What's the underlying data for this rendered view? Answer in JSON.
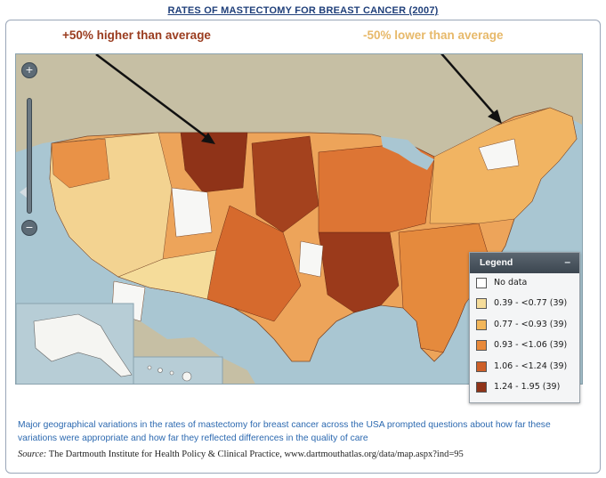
{
  "title": "RATES OF MASTECTOMY FOR BREAST CANCER (2007)",
  "annotations": {
    "high": "+50% higher than average",
    "low": "-50% lower than average"
  },
  "map_controls": {
    "zoom_in_icon": "zoom-in-icon",
    "zoom_out_icon": "zoom-out-icon",
    "zoom_in_glyph": "+",
    "zoom_out_glyph": "−"
  },
  "legend": {
    "title": "Legend",
    "collapse": "–",
    "items": [
      {
        "label": "No data",
        "color": "#ffffff"
      },
      {
        "label": "0.39 - <0.77 (39)",
        "color": "#f5dc9a"
      },
      {
        "label": "0.77 - <0.93 (39)",
        "color": "#f2b65a"
      },
      {
        "label": "0.93 - <1.06 (39)",
        "color": "#e8893a"
      },
      {
        "label": "1.06 - <1.24 (39)",
        "color": "#cd5f28"
      },
      {
        "label": "1.24 - 1.95 (39)",
        "color": "#8f3318"
      }
    ]
  },
  "caption": "Major geographical variations in the rates of mastectomy for breast cancer across the USA prompted questions about how far these variations were appropriate and how far they reflected differences in the quality of care",
  "source": {
    "label": "Source:",
    "text": " The Dartmouth Institute for Health Policy & Clinical Practice, www.dartmouthatlas.org/data/map.aspx?ind=95"
  },
  "colors": {
    "water": "#a9c6d2",
    "land_outside": "#c9c2a8",
    "title": "#1f3f7a",
    "caption": "#2c69b0"
  }
}
